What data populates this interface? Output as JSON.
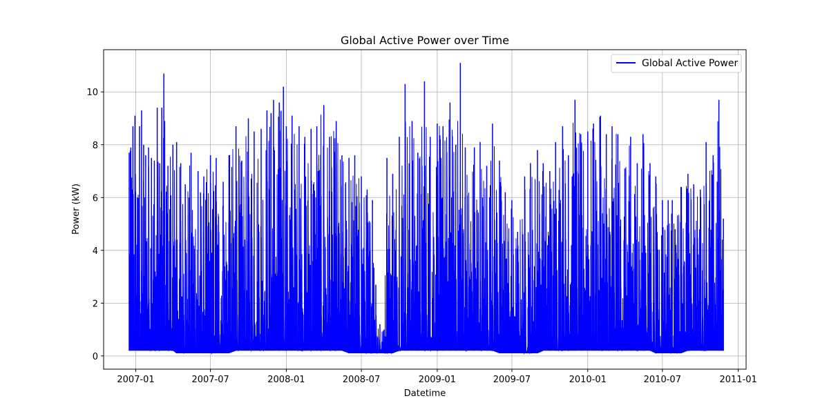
{
  "chart_data": {
    "type": "line",
    "title": "Global Active Power over Time",
    "xlabel": "Datetime",
    "ylabel": "Power (kW)",
    "x_type": "date",
    "xlim": [
      "2006-10-15",
      "2011-01-20"
    ],
    "ylim": [
      -0.5,
      11.6
    ],
    "grid": true,
    "legend_position": "top-right",
    "x_ticks": [
      {
        "date": "2007-01-01",
        "label": "2007-01"
      },
      {
        "date": "2007-07-01",
        "label": "2007-07"
      },
      {
        "date": "2008-01-01",
        "label": "2008-01"
      },
      {
        "date": "2008-07-01",
        "label": "2008-07"
      },
      {
        "date": "2009-01-01",
        "label": "2009-01"
      },
      {
        "date": "2009-07-01",
        "label": "2009-07"
      },
      {
        "date": "2010-01-01",
        "label": "2010-01"
      },
      {
        "date": "2010-07-01",
        "label": "2010-07"
      },
      {
        "date": "2011-01-01",
        "label": "2011-01"
      }
    ],
    "y_ticks": [
      {
        "value": 0,
        "label": "0"
      },
      {
        "value": 2,
        "label": "2"
      },
      {
        "value": 4,
        "label": "4"
      },
      {
        "value": 6,
        "label": "6"
      },
      {
        "value": 8,
        "label": "8"
      },
      {
        "value": 10,
        "label": "10"
      }
    ],
    "series": [
      {
        "name": "Global Active Power",
        "color": "#0000ff",
        "x": [
          "2006-12-16",
          "2006-12-20",
          "2006-12-25",
          "2006-12-30",
          "2007-01-05",
          "2007-01-10",
          "2007-01-15",
          "2007-01-20",
          "2007-01-25",
          "2007-02-01",
          "2007-02-08",
          "2007-02-15",
          "2007-02-22",
          "2007-02-28",
          "2007-03-05",
          "2007-03-10",
          "2007-03-20",
          "2007-04-01",
          "2007-04-10",
          "2007-04-20",
          "2007-05-01",
          "2007-05-15",
          "2007-06-01",
          "2007-06-15",
          "2007-07-01",
          "2007-07-15",
          "2007-08-01",
          "2007-08-15",
          "2007-09-01",
          "2007-09-15",
          "2007-10-01",
          "2007-10-15",
          "2007-11-01",
          "2007-11-15",
          "2007-11-25",
          "2007-12-01",
          "2007-12-15",
          "2007-12-25",
          "2008-01-01",
          "2008-01-15",
          "2008-02-01",
          "2008-02-15",
          "2008-03-01",
          "2008-03-15",
          "2008-04-01",
          "2008-04-15",
          "2008-05-01",
          "2008-05-15",
          "2008-06-01",
          "2008-06-15",
          "2008-07-01",
          "2008-07-15",
          "2008-07-28",
          "2008-08-05",
          "2008-08-15",
          "2008-08-25",
          "2008-09-01",
          "2008-09-15",
          "2008-10-01",
          "2008-10-15",
          "2008-11-01",
          "2008-11-15",
          "2008-12-01",
          "2008-12-15",
          "2009-01-01",
          "2009-01-15",
          "2009-02-01",
          "2009-02-15",
          "2009-02-26",
          "2009-03-10",
          "2009-04-01",
          "2009-04-15",
          "2009-05-01",
          "2009-05-15",
          "2009-06-01",
          "2009-06-15",
          "2009-07-01",
          "2009-07-15",
          "2009-08-01",
          "2009-08-15",
          "2009-09-01",
          "2009-09-15",
          "2009-10-01",
          "2009-10-15",
          "2009-11-01",
          "2009-11-15",
          "2009-12-01",
          "2009-12-15",
          "2010-01-01",
          "2010-01-15",
          "2010-02-01",
          "2010-02-15",
          "2010-03-01",
          "2010-03-15",
          "2010-04-01",
          "2010-04-15",
          "2010-05-01",
          "2010-05-15",
          "2010-06-01",
          "2010-06-15",
          "2010-07-01",
          "2010-07-15",
          "2010-07-25",
          "2010-08-01",
          "2010-08-15",
          "2010-09-01",
          "2010-09-15",
          "2010-10-01",
          "2010-10-15",
          "2010-11-01",
          "2010-11-15",
          "2010-11-26"
        ],
        "max": [
          7.7,
          7.9,
          8.7,
          9.1,
          6.0,
          8.7,
          9.3,
          8.0,
          7.6,
          7.9,
          7.5,
          7.4,
          9.4,
          7.3,
          9.4,
          10.7,
          7.2,
          8.0,
          8.1,
          7.3,
          6.5,
          7.7,
          7.0,
          6.8,
          7.6,
          7.5,
          6.6,
          7.6,
          8.7,
          7.4,
          9.0,
          8.5,
          8.6,
          9.3,
          9.2,
          9.7,
          9.6,
          10.2,
          8.7,
          9.1,
          8.7,
          8.3,
          8.6,
          8.7,
          9.5,
          8.3,
          8.9,
          7.6,
          7.5,
          7.6,
          6.8,
          6.3,
          5.9,
          2.7,
          1.2,
          1.0,
          7.5,
          6.9,
          8.3,
          10.3,
          8.9,
          7.7,
          10.4,
          8.3,
          8.8,
          8.7,
          9.6,
          8.0,
          11.1,
          7.9,
          7.9,
          8.1,
          7.2,
          8.8,
          7.4,
          6.2,
          5.9,
          4.7,
          6.8,
          7.3,
          7.8,
          7.3,
          7.0,
          8.1,
          8.7,
          7.6,
          9.7,
          8.4,
          8.5,
          8.8,
          9.1,
          8.4,
          8.7,
          8.4,
          7.1,
          8.3,
          7.3,
          8.4,
          7.3,
          6.8,
          5.9,
          5.9,
          5.9,
          4.8,
          6.4,
          6.9,
          6.5,
          6.3,
          8.1,
          7.6,
          9.7,
          5.2
        ],
        "min": [
          0.2,
          0.2,
          0.2,
          0.2,
          0.2,
          0.2,
          0.2,
          0.2,
          0.2,
          0.2,
          0.2,
          0.2,
          0.2,
          0.2,
          0.2,
          0.2,
          0.2,
          0.2,
          0.1,
          0.1,
          0.1,
          0.1,
          0.1,
          0.1,
          0.1,
          0.1,
          0.1,
          0.1,
          0.2,
          0.2,
          0.2,
          0.2,
          0.2,
          0.2,
          0.2,
          0.2,
          0.2,
          0.2,
          0.2,
          0.2,
          0.2,
          0.2,
          0.2,
          0.2,
          0.2,
          0.2,
          0.2,
          0.2,
          0.1,
          0.1,
          0.1,
          0.1,
          0.1,
          0.1,
          0.1,
          0.1,
          0.1,
          0.1,
          0.2,
          0.2,
          0.2,
          0.2,
          0.2,
          0.2,
          0.2,
          0.2,
          0.2,
          0.2,
          0.2,
          0.2,
          0.2,
          0.2,
          0.2,
          0.2,
          0.1,
          0.1,
          0.1,
          0.1,
          0.1,
          0.1,
          0.1,
          0.2,
          0.2,
          0.2,
          0.2,
          0.2,
          0.2,
          0.2,
          0.2,
          0.2,
          0.2,
          0.2,
          0.2,
          0.2,
          0.2,
          0.2,
          0.2,
          0.2,
          0.2,
          0.1,
          0.1,
          0.1,
          0.1,
          0.1,
          0.1,
          0.2,
          0.2,
          0.2,
          0.2,
          0.2,
          0.2,
          0.2
        ]
      }
    ]
  }
}
